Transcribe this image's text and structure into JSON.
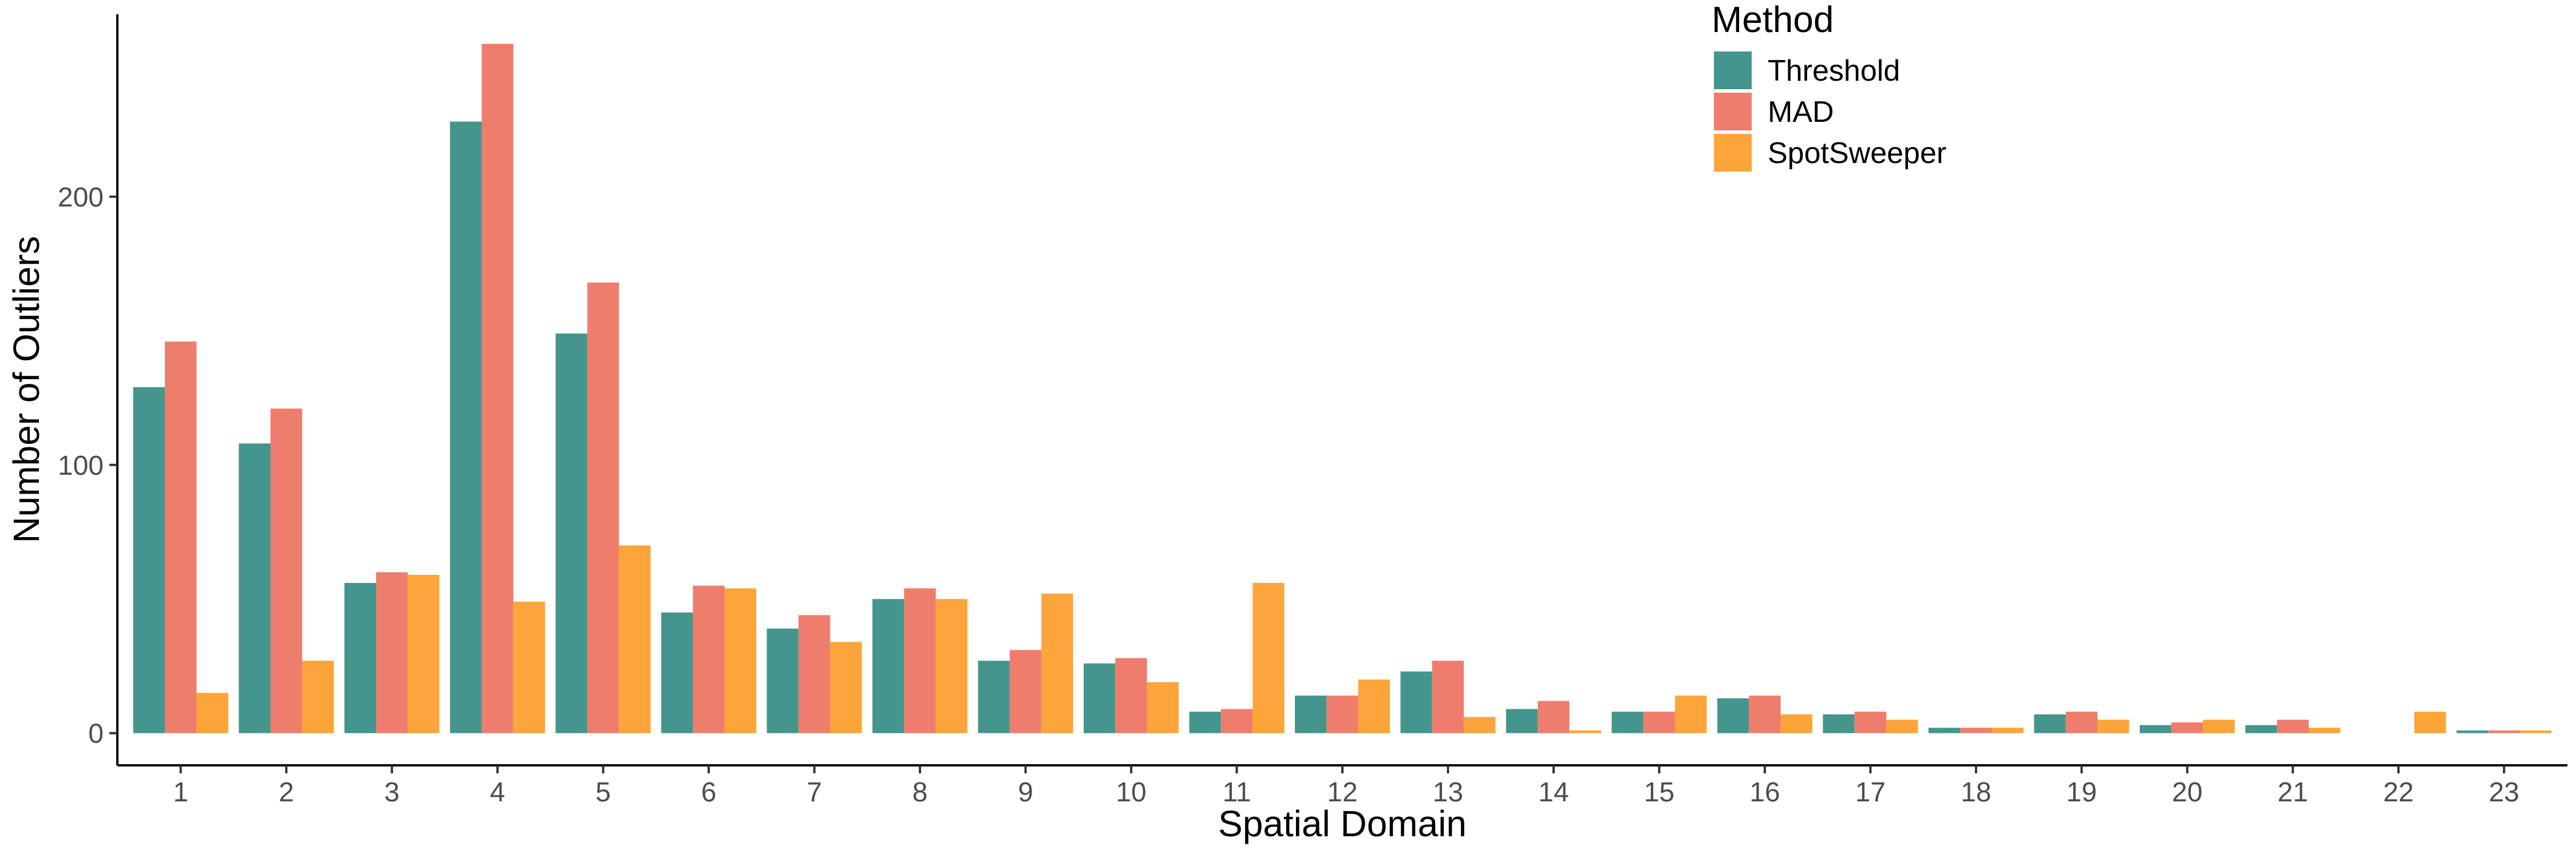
{
  "chart_data": {
    "type": "bar",
    "xlabel": "Spatial Domain",
    "ylabel": "Number of Outliers",
    "categories": [
      "1",
      "2",
      "3",
      "4",
      "5",
      "6",
      "7",
      "8",
      "9",
      "10",
      "11",
      "12",
      "13",
      "14",
      "15",
      "16",
      "17",
      "18",
      "19",
      "20",
      "21",
      "22",
      "23"
    ],
    "ylim": [
      -12,
      268
    ],
    "yticks": [
      0,
      100,
      200
    ],
    "grid": false,
    "legend": {
      "title": "Method",
      "position": "top-right"
    },
    "series": [
      {
        "name": "Threshold",
        "color": "#45958F",
        "values": [
          129,
          108,
          56,
          228,
          149,
          45,
          39,
          50,
          27,
          26,
          8,
          14,
          23,
          9,
          8,
          13,
          7,
          2,
          7,
          3,
          3,
          0,
          1
        ]
      },
      {
        "name": "MAD",
        "color": "#EE7E6B",
        "values": [
          146,
          121,
          60,
          257,
          168,
          55,
          44,
          54,
          31,
          28,
          9,
          14,
          27,
          12,
          8,
          14,
          8,
          2,
          8,
          4,
          5,
          0,
          1
        ]
      },
      {
        "name": "SpotSweeper",
        "color": "#FBA53A",
        "values": [
          15,
          27,
          59,
          49,
          70,
          54,
          34,
          50,
          52,
          19,
          56,
          20,
          6,
          1,
          14,
          7,
          5,
          2,
          5,
          5,
          2,
          8,
          1
        ]
      }
    ]
  }
}
